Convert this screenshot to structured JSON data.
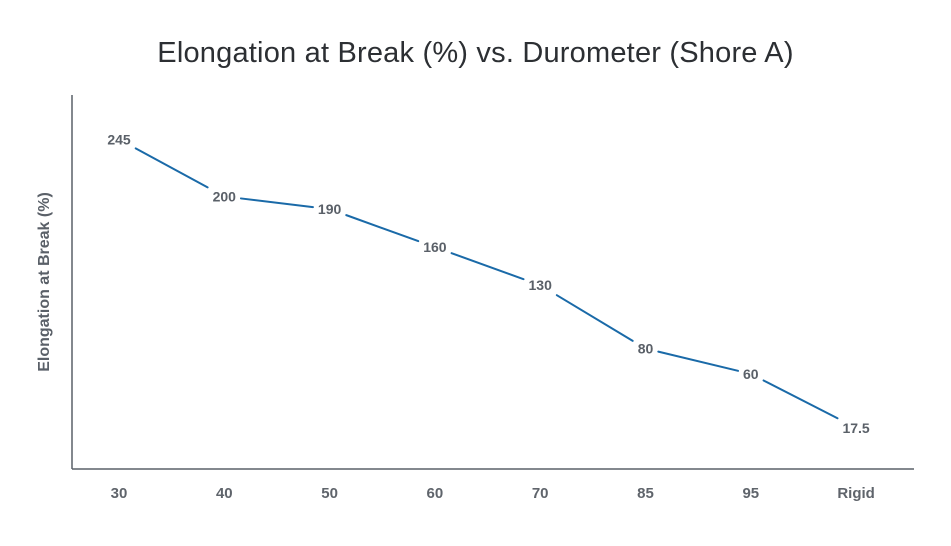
{
  "chart_data": {
    "type": "line",
    "title": "Elongation at Break (%) vs. Durometer (Shore A)",
    "xlabel": "",
    "ylabel": "Elongation at Break (%)",
    "categories": [
      "30",
      "40",
      "50",
      "60",
      "70",
      "85",
      "95",
      "Rigid"
    ],
    "series": [
      {
        "name": "Elongation at Break (%)",
        "values": [
          245,
          200,
          190,
          160,
          130,
          80,
          60,
          17.5
        ],
        "labels": [
          "245",
          "200",
          "190",
          "160",
          "130",
          "80",
          "60",
          "17.5"
        ]
      }
    ],
    "ylim": [
      -15,
      280
    ],
    "grid": false,
    "legend": "none",
    "colors": {
      "line": "#1a6aa8",
      "axis": "#5a6068",
      "title": "#2c2f33",
      "labels": "#5a6068"
    }
  }
}
